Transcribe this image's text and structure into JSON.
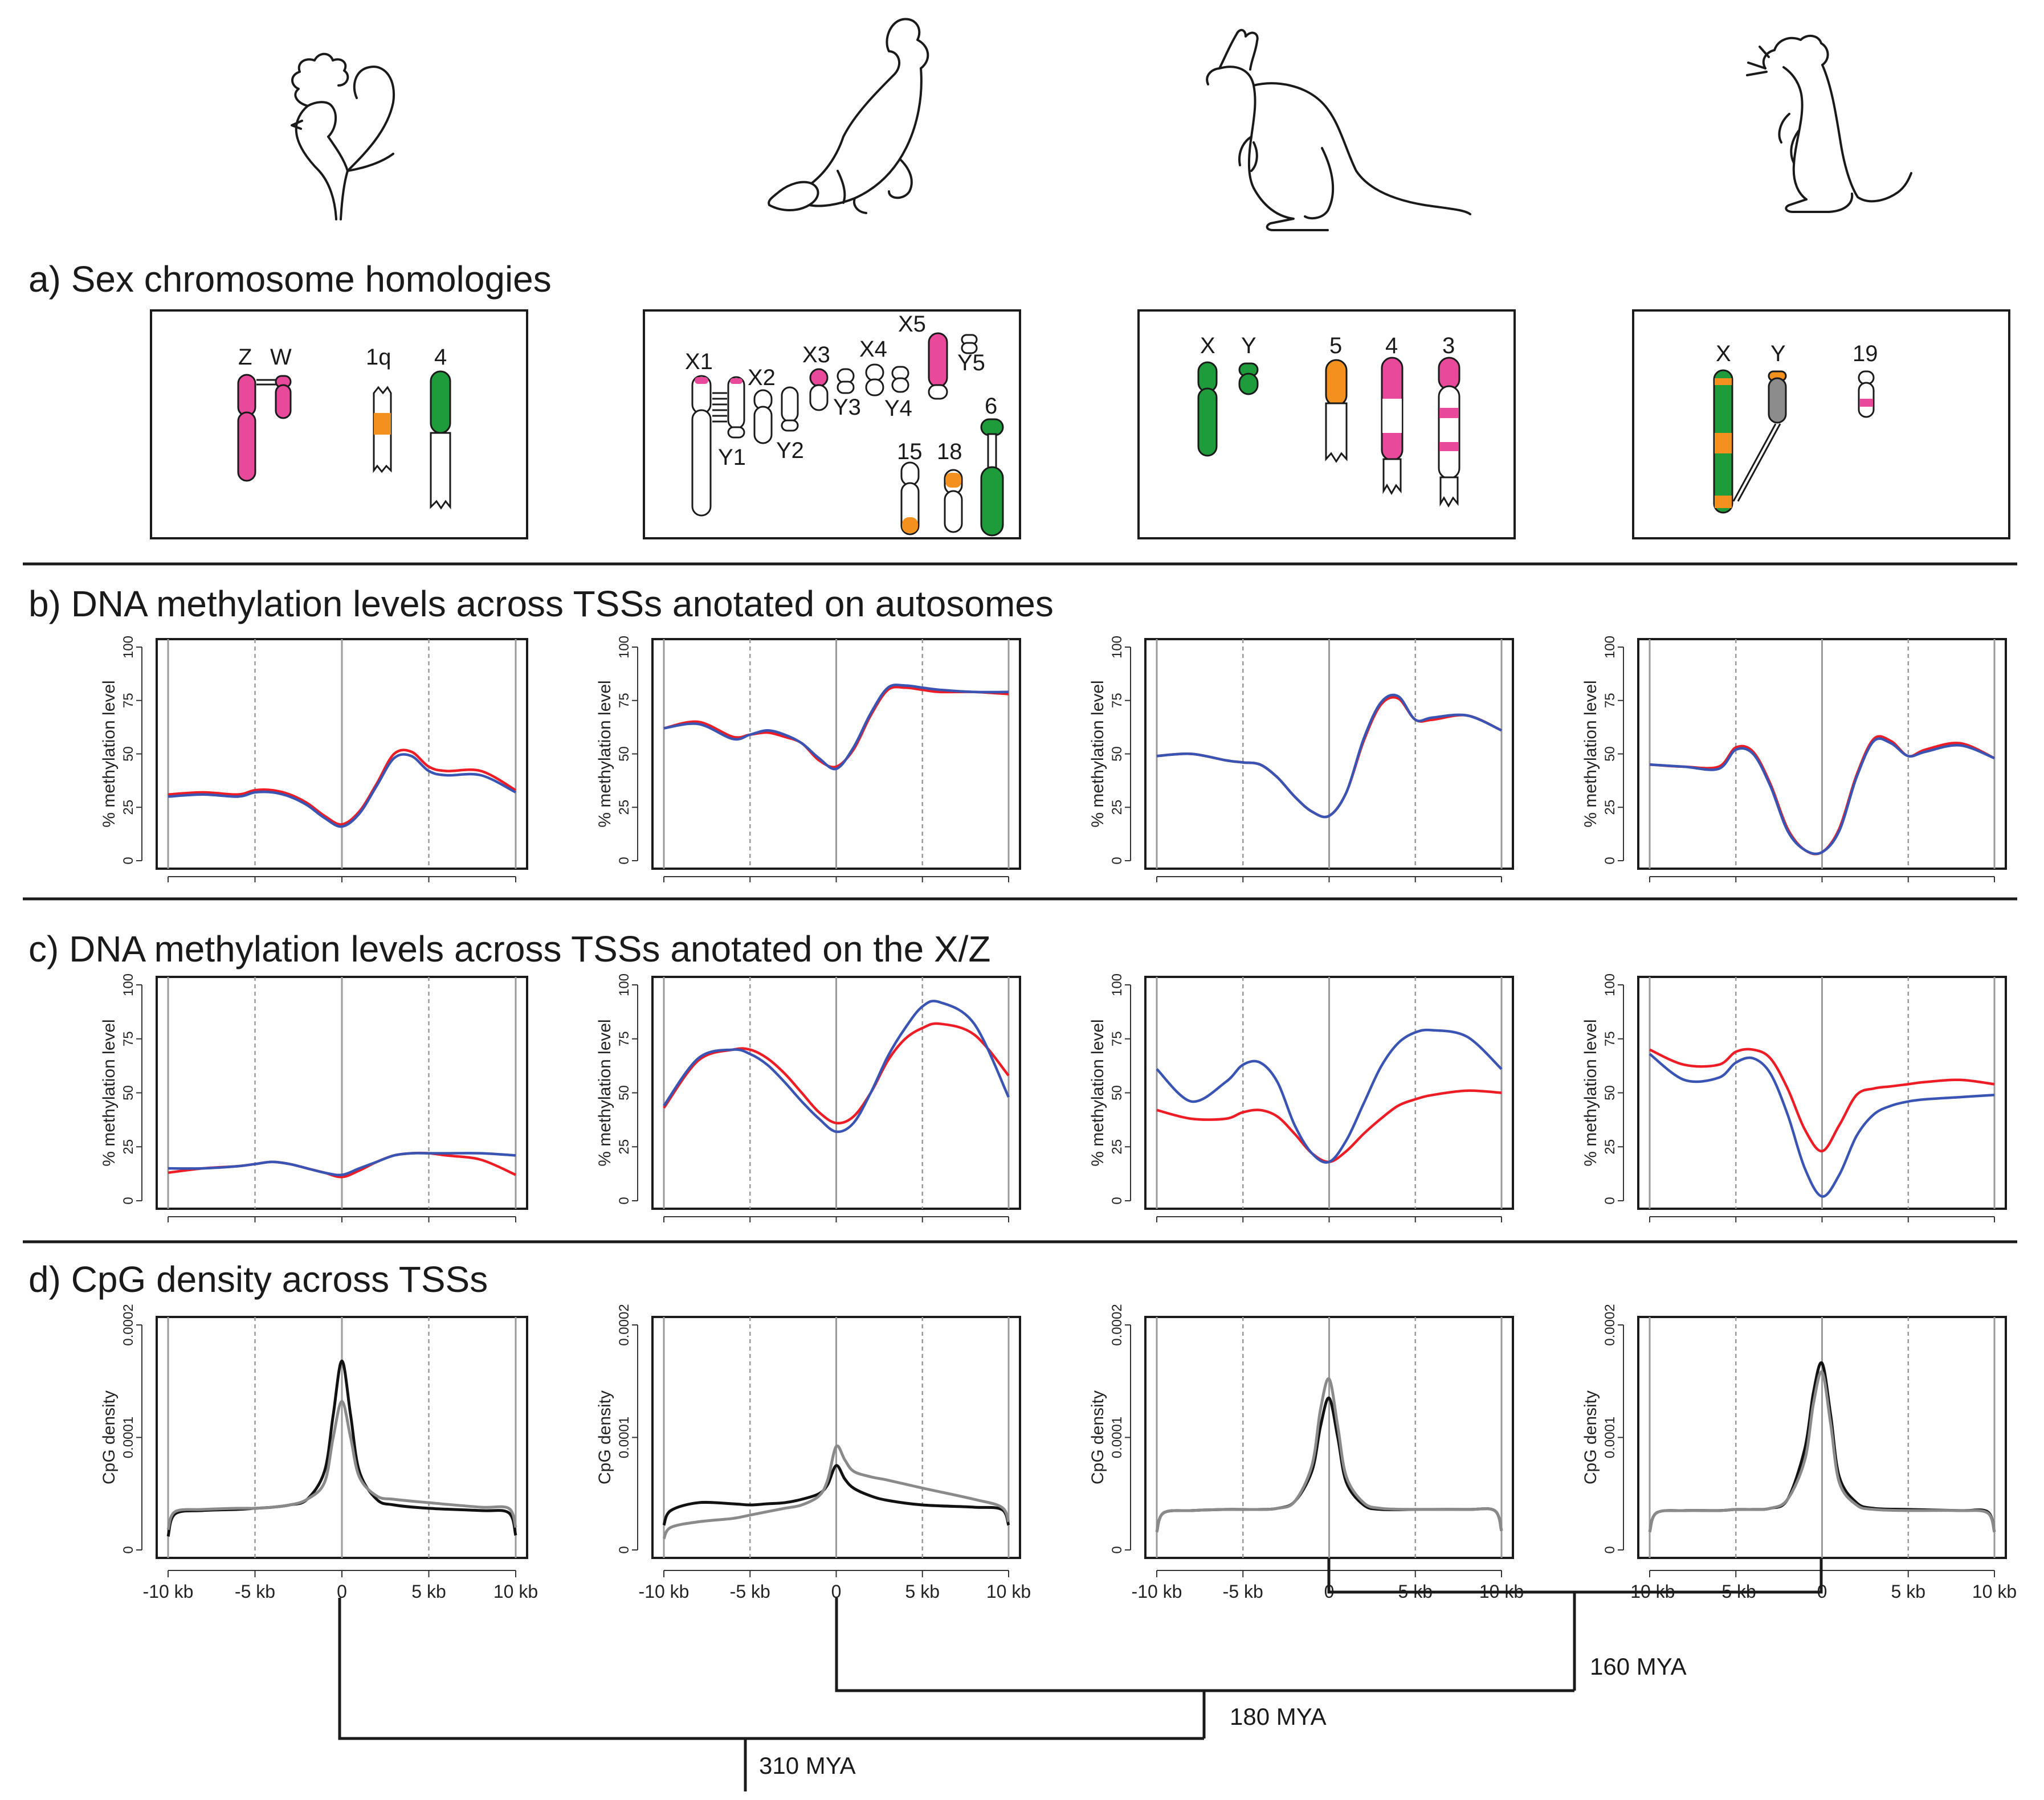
{
  "colors": {
    "pink": "#e8499a",
    "green": "#1e9b3a",
    "orange": "#f3901e",
    "grey": "#8c8c8c",
    "red": "#ee1c25",
    "blue": "#3a54b4",
    "cpg_dark": "#111111",
    "cpg_light": "#8a8a8a"
  },
  "sections": {
    "a": "a)  Sex chromosome homologies",
    "b": "b)  DNA methylation levels across TSSs anotated on autosomes",
    "c": "c)  DNA methylation levels across TSSs anotated on the X/Z",
    "d": "d)  CpG density across TSSs"
  },
  "species": [
    "chicken",
    "platypus",
    "kangaroo",
    "mouse"
  ],
  "animal_icons": [
    "chicken-drawing",
    "platypus-drawing",
    "kangaroo-drawing",
    "mouse-drawing"
  ],
  "karyotype_labels": [
    [
      "Z",
      "W",
      "1q",
      "4"
    ],
    [
      "X1",
      "Y1",
      "X2",
      "Y2",
      "X3",
      "Y3",
      "X4",
      "Y4",
      "X5",
      "Y5",
      "15",
      "18",
      "6"
    ],
    [
      "X",
      "Y",
      "5",
      "4",
      "3"
    ],
    [
      "X",
      "Y",
      "19"
    ]
  ],
  "chart_data": [
    {
      "panel": "b",
      "type": "line",
      "title": "DNA methylation levels across TSSs anotated on autosomes",
      "ylabel": "% methylation level",
      "ylim": [
        0,
        100
      ],
      "yticks": [
        "0",
        "25",
        "50",
        "75",
        "100"
      ],
      "x": [
        -10,
        -8,
        -6,
        -5,
        -4,
        -3,
        -2,
        -1,
        0,
        1,
        2,
        3,
        4,
        5,
        6,
        8,
        10
      ],
      "charts": [
        {
          "species": "chicken",
          "series": [
            {
              "name": "red",
              "values": [
                31,
                32,
                31,
                33,
                33,
                31,
                27,
                21,
                17,
                23,
                36,
                50,
                51,
                44,
                42,
                42,
                33
              ]
            },
            {
              "name": "blue",
              "values": [
                30,
                31,
                30,
                32,
                32,
                30,
                26,
                20,
                16,
                22,
                35,
                48,
                49,
                42,
                40,
                40,
                32
              ]
            }
          ]
        },
        {
          "species": "platypus",
          "series": [
            {
              "name": "red",
              "values": [
                62,
                65,
                58,
                59,
                60,
                58,
                55,
                47,
                44,
                52,
                68,
                80,
                81,
                80,
                79,
                79,
                78
              ]
            },
            {
              "name": "blue",
              "values": [
                62,
                64,
                57,
                59,
                61,
                59,
                55,
                48,
                43,
                53,
                69,
                81,
                82,
                81,
                80,
                79,
                79
              ]
            }
          ]
        },
        {
          "species": "kangaroo",
          "series": [
            {
              "name": "red",
              "values": [
                49,
                50,
                47,
                46,
                45,
                39,
                30,
                23,
                21,
                32,
                56,
                73,
                76,
                66,
                66,
                68,
                61
              ]
            },
            {
              "name": "blue",
              "values": [
                49,
                50,
                47,
                46,
                45,
                39,
                30,
                23,
                21,
                32,
                57,
                74,
                77,
                66,
                67,
                68,
                61
              ]
            }
          ]
        },
        {
          "species": "mouse",
          "series": [
            {
              "name": "red",
              "values": [
                45,
                44,
                44,
                53,
                51,
                36,
                15,
                5,
                4,
                15,
                40,
                57,
                56,
                49,
                52,
                55,
                48
              ]
            },
            {
              "name": "blue",
              "values": [
                45,
                44,
                43,
                52,
                50,
                35,
                14,
                5,
                4,
                14,
                39,
                56,
                55,
                49,
                51,
                54,
                48
              ]
            }
          ]
        }
      ]
    },
    {
      "panel": "c",
      "type": "line",
      "title": "DNA methylation levels across TSSs anotated on the X/Z",
      "ylabel": "% methylation level",
      "ylim": [
        0,
        100
      ],
      "yticks": [
        "0",
        "25",
        "50",
        "75",
        "100"
      ],
      "x": [
        -10,
        -8,
        -6,
        -5,
        -4,
        -3,
        -2,
        -1,
        0,
        1,
        2,
        3,
        4,
        5,
        6,
        8,
        10
      ],
      "charts": [
        {
          "species": "chicken",
          "series": [
            {
              "name": "red",
              "values": [
                13,
                15,
                16,
                17,
                18,
                17,
                15,
                13,
                11,
                14,
                18,
                21,
                22,
                22,
                21,
                19,
                12
              ]
            },
            {
              "name": "blue",
              "values": [
                15,
                15,
                16,
                17,
                18,
                17,
                15,
                13,
                12,
                15,
                18,
                21,
                22,
                22,
                22,
                22,
                21
              ]
            }
          ]
        },
        {
          "species": "platypus",
          "series": [
            {
              "name": "red",
              "values": [
                43,
                65,
                70,
                70,
                66,
                59,
                50,
                41,
                36,
                39,
                50,
                65,
                75,
                80,
                82,
                77,
                58
              ]
            },
            {
              "name": "blue",
              "values": [
                44,
                66,
                70,
                68,
                63,
                55,
                46,
                38,
                32,
                36,
                50,
                67,
                80,
                90,
                92,
                82,
                48
              ]
            }
          ]
        },
        {
          "species": "kangaroo",
          "series": [
            {
              "name": "red",
              "values": [
                42,
                38,
                38,
                41,
                42,
                39,
                31,
                22,
                18,
                23,
                31,
                38,
                44,
                47,
                49,
                51,
                50
              ]
            },
            {
              "name": "blue",
              "values": [
                61,
                46,
                55,
                63,
                64,
                55,
                35,
                22,
                18,
                28,
                45,
                62,
                73,
                78,
                79,
                76,
                61
              ]
            }
          ]
        },
        {
          "species": "mouse",
          "series": [
            {
              "name": "red",
              "values": [
                70,
                63,
                63,
                69,
                70,
                66,
                52,
                33,
                23,
                35,
                49,
                52,
                53,
                54,
                55,
                56,
                54
              ]
            },
            {
              "name": "blue",
              "values": [
                68,
                56,
                57,
                64,
                66,
                59,
                40,
                15,
                2,
                12,
                30,
                40,
                44,
                46,
                47,
                48,
                49
              ]
            }
          ]
        }
      ]
    },
    {
      "panel": "d",
      "type": "line",
      "title": "CpG density across TSSs",
      "ylabel": "CpG density",
      "ylim": [
        0,
        0.0002
      ],
      "yticks": [
        "0",
        "0.0001",
        "0.0002"
      ],
      "xticks": [
        "-10 kb",
        "-5 kb",
        "0",
        "5 kb",
        "10 kb"
      ],
      "x": [
        -10,
        -9.6,
        -8,
        -6,
        -5,
        -4,
        -3,
        -2,
        -1,
        -0.5,
        0,
        0.5,
        1,
        2,
        3,
        5,
        8,
        9.6,
        10
      ],
      "charts": [
        {
          "species": "chicken",
          "series": [
            {
              "name": "dark",
              "values": [
                1.2e-05,
                3.2e-05,
                3.5e-05,
                3.6e-05,
                3.7e-05,
                3.8e-05,
                4e-05,
                4.5e-05,
                7e-05,
                0.00012,
                0.000168,
                0.00012,
                7e-05,
                4.5e-05,
                4e-05,
                3.7e-05,
                3.5e-05,
                3.3e-05,
                1.3e-05
              ]
            },
            {
              "name": "light",
              "values": [
                1.8e-05,
                3.4e-05,
                3.6e-05,
                3.7e-05,
                3.7e-05,
                3.8e-05,
                4e-05,
                4.5e-05,
                6e-05,
                0.0001,
                0.000132,
                0.0001,
                6.5e-05,
                4.8e-05,
                4.5e-05,
                4.2e-05,
                3.8e-05,
                3.7e-05,
                2e-05
              ]
            }
          ]
        },
        {
          "species": "platypus",
          "series": [
            {
              "name": "dark",
              "values": [
                2.2e-05,
                3.5e-05,
                4.2e-05,
                4.1e-05,
                4e-05,
                4.1e-05,
                4.2e-05,
                4.5e-05,
                5e-05,
                5.8e-05,
                7.5e-05,
                6.3e-05,
                5.5e-05,
                4.8e-05,
                4.4e-05,
                4e-05,
                3.8e-05,
                3.6e-05,
                2.2e-05
              ]
            },
            {
              "name": "light",
              "values": [
                1e-05,
                2e-05,
                2.5e-05,
                2.8e-05,
                3.1e-05,
                3.4e-05,
                3.7e-05,
                4e-05,
                4.8e-05,
                6.2e-05,
                9.2e-05,
                8e-05,
                7e-05,
                6.5e-05,
                6.2e-05,
                5.5e-05,
                4.5e-05,
                3.8e-05,
                2.5e-05
              ]
            }
          ]
        },
        {
          "species": "kangaroo",
          "series": [
            {
              "name": "dark",
              "values": [
                1.6e-05,
                3.3e-05,
                3.5e-05,
                3.6e-05,
                3.6e-05,
                3.6e-05,
                3.7e-05,
                4.3e-05,
                7e-05,
                0.00011,
                0.000135,
                0.0001,
                6e-05,
                4e-05,
                3.6e-05,
                3.6e-05,
                3.6e-05,
                3.5e-05,
                1.7e-05
              ]
            },
            {
              "name": "light",
              "values": [
                1.6e-05,
                3.3e-05,
                3.5e-05,
                3.6e-05,
                3.6e-05,
                3.6e-05,
                3.7e-05,
                4.3e-05,
                7.5e-05,
                0.000125,
                0.000152,
                0.00011,
                6.5e-05,
                4.2e-05,
                3.7e-05,
                3.6e-05,
                3.6e-05,
                3.5e-05,
                1.7e-05
              ]
            }
          ]
        },
        {
          "species": "mouse",
          "series": [
            {
              "name": "dark",
              "values": [
                1.6e-05,
                3.3e-05,
                3.5e-05,
                3.5e-05,
                3.6e-05,
                3.6e-05,
                3.7e-05,
                4.5e-05,
                9e-05,
                0.00014,
                0.000166,
                0.00012,
                6.5e-05,
                4.2e-05,
                3.7e-05,
                3.6e-05,
                3.5e-05,
                3.4e-05,
                1.6e-05
              ]
            },
            {
              "name": "light",
              "values": [
                1.6e-05,
                3.3e-05,
                3.5e-05,
                3.5e-05,
                3.6e-05,
                3.6e-05,
                3.7e-05,
                4.5e-05,
                8e-05,
                0.00013,
                0.000158,
                0.000112,
                6e-05,
                4e-05,
                3.6e-05,
                3.5e-05,
                3.5e-05,
                3.3e-05,
                1.6e-05
              ]
            }
          ]
        }
      ]
    }
  ],
  "phylogeny": {
    "labels": [
      "160 MYA",
      "180 MYA",
      "310 MYA"
    ]
  }
}
